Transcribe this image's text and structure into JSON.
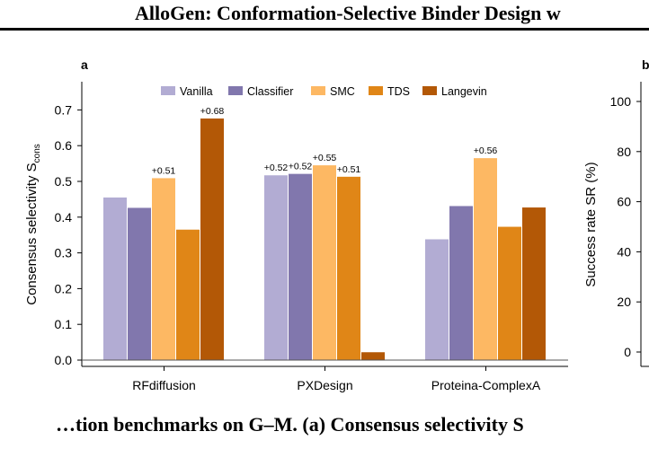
{
  "header": {
    "title": "AlloGen: Conformation-Selective Binder Design w"
  },
  "caption": {
    "text": "…tion benchmarks on G–M. (a) Consensus selectivity S"
  },
  "chart_data": [
    {
      "panel_label": "a",
      "type": "bar",
      "categories": [
        "RFdiffusion",
        "PXDesign",
        "Proteina-ComplexA"
      ],
      "series": [
        {
          "name": "Vanilla",
          "color": "#b2acd3",
          "values": [
            0.455,
            0.517,
            0.338
          ]
        },
        {
          "name": "Classifier",
          "color": "#8177ad",
          "values": [
            0.426,
            0.521,
            0.431
          ]
        },
        {
          "name": "SMC",
          "color": "#fdb863",
          "values": [
            0.509,
            0.545,
            0.565
          ]
        },
        {
          "name": "TDS",
          "color": "#e08617",
          "values": [
            0.365,
            0.513,
            0.373
          ]
        },
        {
          "name": "Langevin",
          "color": "#b35806",
          "values": [
            0.676,
            0.022,
            0.427
          ]
        }
      ],
      "annotations": [
        {
          "category": 0,
          "series": 2,
          "text": "+0.51"
        },
        {
          "category": 0,
          "series": 4,
          "text": "+0.68"
        },
        {
          "category": 1,
          "series": 0,
          "text": "+0.52"
        },
        {
          "category": 1,
          "series": 1,
          "text": "+0.52"
        },
        {
          "category": 1,
          "series": 2,
          "text": "+0.55"
        },
        {
          "category": 1,
          "series": 3,
          "text": "+0.51"
        },
        {
          "category": 2,
          "series": 2,
          "text": "+0.56"
        }
      ],
      "ylabel": "Consensus selectivity S",
      "ylabel_sub": "cons",
      "ylim": [
        0,
        0.78
      ],
      "yticks": [
        "0.0",
        "0.1",
        "0.2",
        "0.3",
        "0.4",
        "0.5",
        "0.6",
        "0.7"
      ],
      "grid": false,
      "legend": "top-center"
    },
    {
      "panel_label": "b",
      "type": "bar",
      "ylabel": "Success rate SR (%)",
      "ylim": [
        -5,
        105
      ],
      "yticks": [
        "0",
        "20",
        "40",
        "60",
        "80",
        "100"
      ],
      "grid": false
    }
  ]
}
